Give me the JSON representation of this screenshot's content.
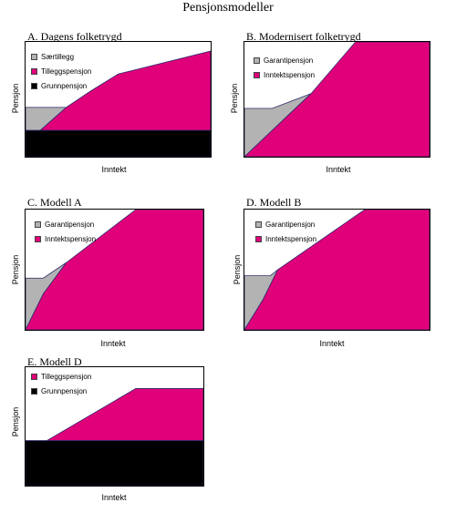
{
  "title": "Pensjonsmodeller",
  "colors": {
    "saertillegg": "#b3b3b3",
    "tilleggspensjon": "#e0007a",
    "grunnpensjon": "#000000",
    "garantipensjon": "#b3b3b3",
    "inntektspensjon": "#e0007a",
    "outline": "#2a2a6a"
  },
  "chart_data": [
    {
      "type": "area",
      "title": "A. Dagens folketrygd",
      "xlabel": "Inntekt",
      "ylabel": "Pensjon",
      "xlim": [
        0,
        100
      ],
      "ylim": [
        0,
        100
      ],
      "legend": "top-left",
      "series": [
        {
          "name": "Grunnpensjon",
          "color": "#000000",
          "polygon": [
            [
              0,
              0
            ],
            [
              100,
              0
            ],
            [
              100,
              23
            ],
            [
              0,
              23
            ]
          ]
        },
        {
          "name": "Særtillegg",
          "color": "#b3b3b3",
          "polygon": [
            [
              0,
              23
            ],
            [
              0,
              43
            ],
            [
              22,
              43
            ],
            [
              8,
              23
            ]
          ]
        },
        {
          "name": "Tilleggspensjon",
          "color": "#e0007a",
          "polygon": [
            [
              8,
              23
            ],
            [
              22,
              43
            ],
            [
              35,
              57
            ],
            [
              50,
              72
            ],
            [
              60,
              76
            ],
            [
              100,
              92
            ],
            [
              100,
              23
            ]
          ]
        }
      ]
    },
    {
      "type": "area",
      "title": "B. Modernisert folketrygd",
      "xlabel": "Inntekt",
      "ylabel": "Pensjon",
      "xlim": [
        0,
        100
      ],
      "ylim": [
        0,
        100
      ],
      "legend": "top-left",
      "series": [
        {
          "name": "Garantipensjon",
          "color": "#b3b3b3",
          "polygon": [
            [
              0,
              0
            ],
            [
              0,
              42
            ],
            [
              15,
              42
            ],
            [
              36,
              55
            ]
          ]
        },
        {
          "name": "Inntektspensjon",
          "color": "#e0007a",
          "polygon": [
            [
              0,
              0
            ],
            [
              36,
              55
            ],
            [
              60,
              100
            ],
            [
              100,
              100
            ],
            [
              100,
              0
            ]
          ]
        }
      ]
    },
    {
      "type": "area",
      "title": "C. Modell A",
      "xlabel": "Inntekt",
      "ylabel": "Pensjon",
      "xlim": [
        0,
        100
      ],
      "ylim": [
        0,
        100
      ],
      "legend": "top-left",
      "series": [
        {
          "name": "Garantipensjon",
          "color": "#b3b3b3",
          "polygon": [
            [
              0,
              0
            ],
            [
              0,
              43
            ],
            [
              10,
              43
            ],
            [
              23,
              56
            ],
            [
              10,
              30
            ]
          ]
        },
        {
          "name": "Inntektspensjon",
          "color": "#e0007a",
          "polygon": [
            [
              0,
              0
            ],
            [
              10,
              30
            ],
            [
              23,
              56
            ],
            [
              62,
              100
            ],
            [
              100,
              100
            ],
            [
              100,
              0
            ]
          ]
        }
      ]
    },
    {
      "type": "area",
      "title": "D. Modell B",
      "xlabel": "Inntekt",
      "ylabel": "Pensjon",
      "xlim": [
        0,
        100
      ],
      "ylim": [
        0,
        100
      ],
      "legend": "top-left",
      "series": [
        {
          "name": "Garantipensjon",
          "color": "#b3b3b3",
          "polygon": [
            [
              0,
              0
            ],
            [
              0,
              45
            ],
            [
              14,
              45
            ],
            [
              18,
              50
            ],
            [
              10,
              25
            ]
          ]
        },
        {
          "name": "Inntektspensjon",
          "color": "#e0007a",
          "polygon": [
            [
              0,
              0
            ],
            [
              10,
              25
            ],
            [
              18,
              50
            ],
            [
              65,
              100
            ],
            [
              100,
              100
            ],
            [
              100,
              0
            ]
          ]
        }
      ]
    },
    {
      "type": "area",
      "title": "E. Modell D",
      "xlabel": "Inntekt",
      "ylabel": "Pensjon",
      "xlim": [
        0,
        100
      ],
      "ylim": [
        0,
        100
      ],
      "legend": "top-left",
      "series": [
        {
          "name": "Grunnpensjon",
          "color": "#000000",
          "polygon": [
            [
              0,
              0
            ],
            [
              100,
              0
            ],
            [
              100,
              38
            ],
            [
              0,
              38
            ]
          ]
        },
        {
          "name": "Tilleggspensjon",
          "color": "#e0007a",
          "polygon": [
            [
              12,
              38
            ],
            [
              62,
              82
            ],
            [
              100,
              82
            ],
            [
              100,
              38
            ]
          ]
        }
      ]
    }
  ]
}
